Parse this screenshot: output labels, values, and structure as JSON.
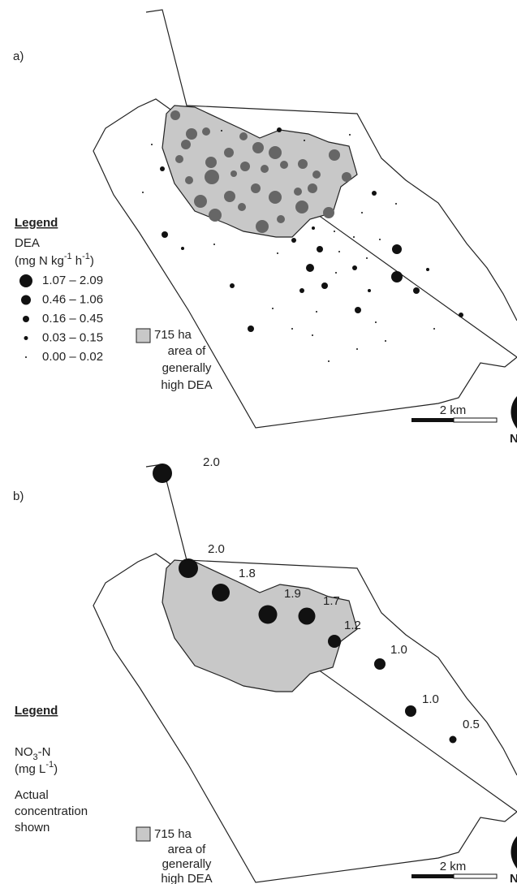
{
  "panels": [
    {
      "label": "a)",
      "legend_title": "Legend",
      "variable": [
        "DEA"
      ],
      "unit": [
        "(mg N kg",
        "-1",
        " h",
        "-1",
        ")"
      ],
      "classes": [
        "1.07 – 2.09",
        "0.46 – 1.06",
        "0.16 – 0.45",
        "0.03 – 0.15",
        "0.00 – 0.02"
      ],
      "area": [
        "715 ha",
        "area of",
        "generally",
        "high DEA"
      ],
      "scale": "2 km",
      "north": "N"
    },
    {
      "label": "b)",
      "legend_title": "Legend",
      "variable": [
        "NO",
        "3",
        "-N"
      ],
      "unit": [
        "(mg L",
        "-1",
        ")"
      ],
      "note": [
        "Actual",
        "concentration",
        "shown"
      ],
      "area": [
        "715 ha",
        "area of",
        "generally",
        "high DEA"
      ],
      "scale": "2 km",
      "north": "N",
      "samples": {
        "values": [
          2.0,
          2.0,
          1.8,
          1.9,
          1.7,
          1.2,
          1.0,
          1.0,
          0.5
        ],
        "value_labels": [
          "2.0",
          "2.0",
          "1.8",
          "1.9",
          "1.7",
          "1.2",
          "1.0",
          "1.0",
          "0.5"
        ]
      }
    }
  ]
}
